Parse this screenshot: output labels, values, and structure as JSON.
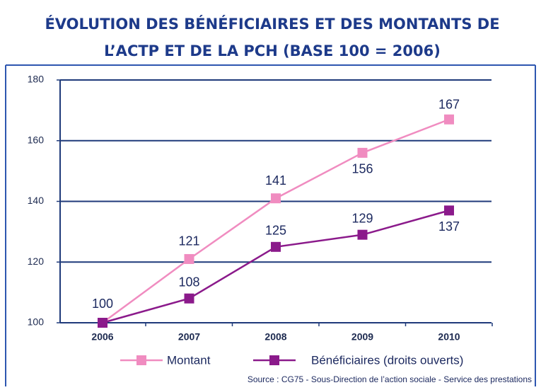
{
  "chart_data": {
    "type": "line",
    "title": [
      "ÉVOLUTION DES BÉNÉFICIAIRES ET DES MONTANTS DE",
      "L’ACTP ET DE LA PCH (BASE 100 = 2006)"
    ],
    "categories": [
      "2006",
      "2007",
      "2008",
      "2009",
      "2010"
    ],
    "series": [
      {
        "name": "Montant",
        "color": "#f08cc0",
        "values": [
          100,
          121,
          141,
          156,
          167
        ]
      },
      {
        "name": "Bénéficiaires (droits ouverts)",
        "color": "#8b1a8b",
        "values": [
          100,
          108,
          125,
          129,
          137
        ]
      }
    ],
    "ylim": [
      100,
      180
    ],
    "yticks": [
      100,
      120,
      140,
      160,
      180
    ],
    "grid": true,
    "legend": "bottom",
    "source": "Source : CG75 - Sous-Direction de l’action sociale - Service des prestations"
  }
}
